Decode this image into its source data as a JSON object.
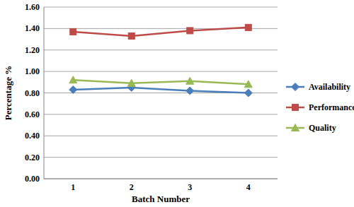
{
  "chart_data": {
    "type": "line",
    "x_label": "Batch Number",
    "y_label": "Percentage %",
    "categories": [
      "1",
      "2",
      "3",
      "4"
    ],
    "series": [
      {
        "name": "Availability",
        "color": "#4a7ebb",
        "marker": "diamond",
        "values": [
          0.83,
          0.85,
          0.82,
          0.8
        ]
      },
      {
        "name": "Performance",
        "color": "#be4b48",
        "marker": "square",
        "values": [
          1.37,
          1.33,
          1.38,
          1.41
        ]
      },
      {
        "name": "Quality",
        "color": "#98b954",
        "marker": "triangle",
        "values": [
          0.92,
          0.89,
          0.91,
          0.88
        ]
      }
    ],
    "ylim": [
      0,
      1.6
    ],
    "yticks": [
      {
        "value": 0,
        "label": "0.00"
      },
      {
        "value": 0.2,
        "label": "0.20"
      },
      {
        "value": 0.4,
        "label": "0.40"
      },
      {
        "value": 0.6,
        "label": "0.60"
      },
      {
        "value": 0.8,
        "label": "0.80"
      },
      {
        "value": 1.0,
        "label": "1.00"
      },
      {
        "value": 1.2,
        "label": "1.20"
      },
      {
        "value": 1.4,
        "label": "1.40"
      },
      {
        "value": 1.6,
        "label": "1.60"
      }
    ],
    "grid": true,
    "legend": "right"
  }
}
